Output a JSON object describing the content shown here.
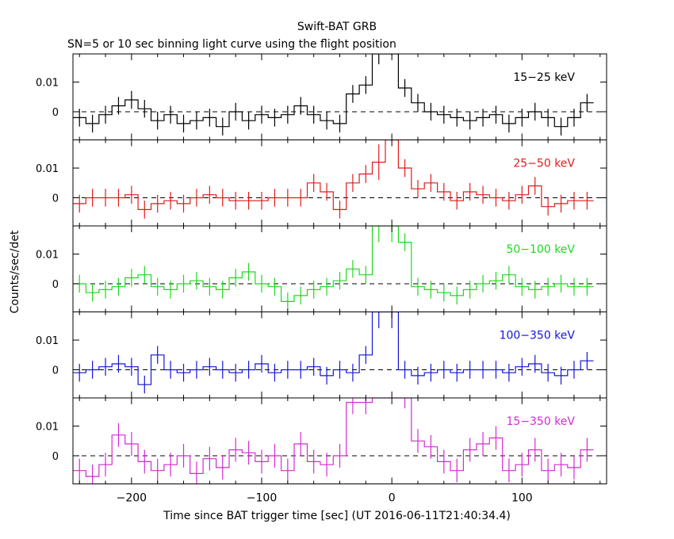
{
  "title": "Swift-BAT GRB",
  "subtitle": "SN=5 or 10 sec binning light curve using the flight position",
  "xlabel": "Time since BAT trigger time [sec] (UT 2016-06-11T21:40:34.4)",
  "ylabel": "Counts/sec/det",
  "chart_data": {
    "type": "line",
    "step": true,
    "xlim": [
      -245,
      165
    ],
    "ylim": [
      -0.0095,
      0.0195
    ],
    "x_ticks": [
      -200,
      -100,
      0,
      100
    ],
    "x_tick_labels": [
      "−200",
      "−100",
      "0",
      "100"
    ],
    "y_ticks": [
      0,
      0.01
    ],
    "y_tick_labels": [
      "0",
      "0.01"
    ],
    "zero_line": "dashed",
    "bin_width": 10,
    "x": [
      -240,
      -230,
      -220,
      -210,
      -200,
      -190,
      -180,
      -170,
      -160,
      -150,
      -140,
      -130,
      -120,
      -110,
      -100,
      -90,
      -80,
      -70,
      -60,
      -50,
      -40,
      -30,
      -20,
      -10,
      0,
      10,
      20,
      30,
      40,
      50,
      60,
      70,
      80,
      90,
      100,
      110,
      120,
      130,
      140,
      150
    ],
    "series": [
      {
        "name": "15−25 keV",
        "color": "#000000",
        "values": [
          -0.002,
          -0.004,
          -0.001,
          0.002,
          0.004,
          0.001,
          -0.003,
          -0.001,
          -0.004,
          -0.003,
          -0.002,
          -0.005,
          0.0,
          -0.003,
          -0.001,
          -0.002,
          -0.001,
          0.002,
          -0.001,
          -0.003,
          -0.004,
          0.006,
          0.009,
          0.022,
          0.025,
          0.008,
          0.003,
          0.0,
          -0.001,
          -0.002,
          -0.003,
          -0.002,
          -0.001,
          -0.004,
          -0.002,
          0.0,
          -0.002,
          -0.005,
          -0.002,
          0.003
        ],
        "errors": [
          0.003,
          0.003,
          0.003,
          0.003,
          0.003,
          0.003,
          0.003,
          0.003,
          0.003,
          0.003,
          0.003,
          0.003,
          0.003,
          0.003,
          0.003,
          0.003,
          0.003,
          0.003,
          0.003,
          0.003,
          0.003,
          0.003,
          0.003,
          0.006,
          0.006,
          0.003,
          0.003,
          0.003,
          0.003,
          0.003,
          0.003,
          0.003,
          0.003,
          0.003,
          0.003,
          0.003,
          0.003,
          0.003,
          0.003,
          0.003
        ]
      },
      {
        "name": "25−50 keV",
        "color": "#e21b1b",
        "values": [
          -0.002,
          0.0,
          0.0,
          0.0,
          0.001,
          -0.004,
          -0.002,
          -0.001,
          -0.002,
          0.0,
          0.001,
          0.0,
          -0.001,
          -0.001,
          -0.001,
          0.0,
          0.0,
          0.0,
          0.005,
          0.002,
          -0.004,
          0.005,
          0.008,
          0.012,
          0.025,
          0.01,
          0.003,
          0.005,
          0.002,
          -0.001,
          0.002,
          0.001,
          0.0,
          -0.001,
          0.001,
          0.004,
          -0.003,
          -0.002,
          -0.001,
          -0.001
        ],
        "errors": [
          0.003,
          0.003,
          0.003,
          0.003,
          0.003,
          0.003,
          0.003,
          0.003,
          0.003,
          0.003,
          0.003,
          0.003,
          0.003,
          0.003,
          0.003,
          0.003,
          0.003,
          0.003,
          0.003,
          0.003,
          0.003,
          0.003,
          0.003,
          0.006,
          0.006,
          0.003,
          0.003,
          0.003,
          0.003,
          0.003,
          0.003,
          0.003,
          0.003,
          0.003,
          0.003,
          0.003,
          0.003,
          0.003,
          0.003,
          0.003
        ]
      },
      {
        "name": "50−100 keV",
        "color": "#1ed81e",
        "values": [
          0.0,
          -0.003,
          -0.002,
          -0.001,
          0.002,
          0.003,
          -0.001,
          -0.002,
          0.0,
          0.001,
          -0.001,
          -0.002,
          0.002,
          0.004,
          0.0,
          -0.001,
          -0.006,
          -0.004,
          -0.002,
          -0.001,
          0.001,
          0.005,
          0.003,
          0.02,
          0.02,
          0.014,
          -0.001,
          -0.002,
          -0.003,
          -0.004,
          -0.002,
          0.0,
          0.001,
          0.003,
          -0.001,
          -0.002,
          -0.001,
          0.0,
          -0.001,
          -0.001
        ],
        "errors": [
          0.003,
          0.003,
          0.003,
          0.003,
          0.003,
          0.003,
          0.003,
          0.003,
          0.003,
          0.003,
          0.003,
          0.003,
          0.003,
          0.003,
          0.003,
          0.003,
          0.003,
          0.003,
          0.003,
          0.003,
          0.003,
          0.003,
          0.003,
          0.006,
          0.006,
          0.003,
          0.003,
          0.003,
          0.003,
          0.003,
          0.003,
          0.003,
          0.003,
          0.003,
          0.003,
          0.003,
          0.003,
          0.003,
          0.003,
          0.003
        ]
      },
      {
        "name": "100−350 keV",
        "color": "#1515d8",
        "values": [
          -0.001,
          0.0,
          0.001,
          0.002,
          0.001,
          -0.005,
          0.005,
          0.0,
          -0.001,
          0.0,
          0.001,
          0.0,
          -0.001,
          0.0,
          0.002,
          -0.001,
          0.0,
          0.0,
          0.001,
          -0.002,
          0.0,
          -0.001,
          0.005,
          0.02,
          0.02,
          0.0,
          -0.002,
          -0.001,
          0.0,
          -0.001,
          0.0,
          0.0,
          0.0,
          -0.001,
          0.001,
          0.002,
          -0.001,
          -0.002,
          0.0,
          0.003
        ],
        "errors": [
          0.003,
          0.003,
          0.003,
          0.003,
          0.003,
          0.003,
          0.003,
          0.003,
          0.003,
          0.003,
          0.003,
          0.003,
          0.003,
          0.003,
          0.003,
          0.003,
          0.003,
          0.003,
          0.003,
          0.003,
          0.003,
          0.003,
          0.003,
          0.006,
          0.006,
          0.003,
          0.003,
          0.003,
          0.003,
          0.003,
          0.003,
          0.003,
          0.003,
          0.003,
          0.003,
          0.003,
          0.003,
          0.003,
          0.003,
          0.003
        ]
      },
      {
        "name": "15−350 keV",
        "color": "#d42bd4",
        "values": [
          -0.005,
          -0.007,
          -0.003,
          0.007,
          0.004,
          -0.002,
          -0.005,
          -0.003,
          0.0,
          -0.006,
          -0.001,
          -0.004,
          0.002,
          0.001,
          -0.002,
          0.0,
          -0.005,
          0.004,
          -0.002,
          -0.003,
          0.0,
          0.018,
          0.018,
          0.03,
          0.03,
          0.02,
          0.005,
          0.003,
          -0.002,
          -0.005,
          0.002,
          0.004,
          0.006,
          -0.005,
          -0.003,
          0.002,
          -0.005,
          -0.003,
          -0.004,
          0.002
        ],
        "errors": [
          0.004,
          0.004,
          0.004,
          0.004,
          0.004,
          0.004,
          0.004,
          0.004,
          0.004,
          0.004,
          0.004,
          0.004,
          0.004,
          0.004,
          0.004,
          0.004,
          0.004,
          0.004,
          0.004,
          0.004,
          0.004,
          0.004,
          0.004,
          0.008,
          0.008,
          0.004,
          0.004,
          0.004,
          0.004,
          0.004,
          0.004,
          0.004,
          0.004,
          0.004,
          0.004,
          0.004,
          0.004,
          0.004,
          0.004,
          0.004
        ]
      }
    ]
  }
}
